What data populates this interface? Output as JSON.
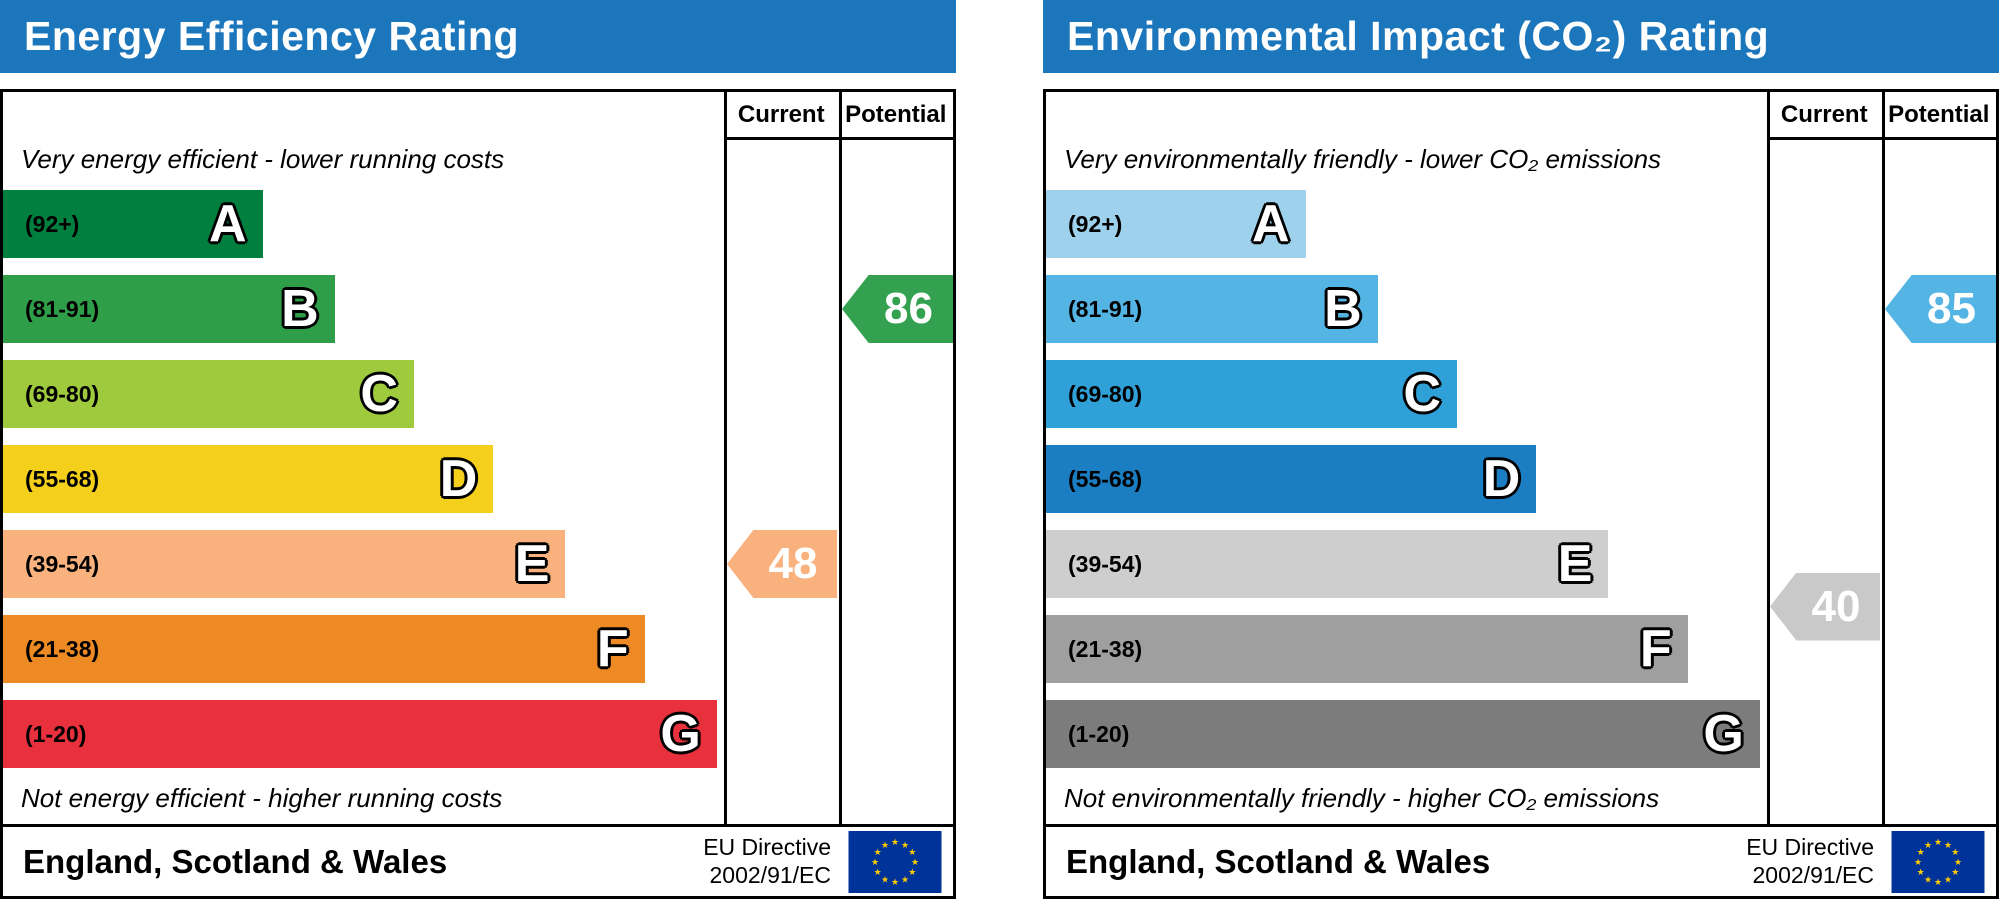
{
  "theme": {
    "header_color": "#1b76bc",
    "flag_blue": "#003399",
    "flag_star": "#ffcc00"
  },
  "panels": [
    {
      "title": "Energy Efficiency Rating",
      "columns": {
        "current": "Current",
        "potential": "Potential"
      },
      "top_caption": "Very energy efficient - lower running costs",
      "bottom_caption": "Not energy efficient - higher running costs",
      "bands": [
        {
          "range": "(92+)",
          "letter": "A",
          "color": "#007f3f",
          "width_pct": 36
        },
        {
          "range": "(81-91)",
          "letter": "B",
          "color": "#2f9e48",
          "width_pct": 46
        },
        {
          "range": "(69-80)",
          "letter": "C",
          "color": "#9fca3d",
          "width_pct": 57
        },
        {
          "range": "(55-68)",
          "letter": "D",
          "color": "#f4d01c",
          "width_pct": 68
        },
        {
          "range": "(39-54)",
          "letter": "E",
          "color": "#f9b27e",
          "width_pct": 78
        },
        {
          "range": "(21-38)",
          "letter": "F",
          "color": "#ee8a24",
          "width_pct": 89
        },
        {
          "range": "(1-20)",
          "letter": "G",
          "color": "#e9313d",
          "width_pct": 99
        }
      ],
      "current": {
        "value": "48",
        "color": "#f9b27e",
        "row": 4
      },
      "potential": {
        "value": "86",
        "color": "#33a150",
        "row": 1
      },
      "footer": {
        "region": "England, Scotland & Wales",
        "directive_line1": "EU Directive",
        "directive_line2": "2002/91/EC"
      }
    },
    {
      "title": "Environmental Impact (CO₂) Rating",
      "columns": {
        "current": "Current",
        "potential": "Potential"
      },
      "top_caption": "Very environmentally friendly - lower CO₂ emissions",
      "bottom_caption": "Not environmentally friendly - higher CO₂ emissions",
      "bands": [
        {
          "range": "(92+)",
          "letter": "A",
          "color": "#9ed1ec",
          "width_pct": 36
        },
        {
          "range": "(81-91)",
          "letter": "B",
          "color": "#54b5e4",
          "width_pct": 46
        },
        {
          "range": "(69-80)",
          "letter": "C",
          "color": "#2fa0d8",
          "width_pct": 57
        },
        {
          "range": "(55-68)",
          "letter": "D",
          "color": "#1b7ec2",
          "width_pct": 68
        },
        {
          "range": "(39-54)",
          "letter": "E",
          "color": "#cecece",
          "width_pct": 78
        },
        {
          "range": "(21-38)",
          "letter": "F",
          "color": "#9f9f9f",
          "width_pct": 89
        },
        {
          "range": "(1-20)",
          "letter": "G",
          "color": "#7c7c7c",
          "width_pct": 99
        }
      ],
      "current": {
        "value": "40",
        "color": "#c9c9c9",
        "row": 4.5
      },
      "potential": {
        "value": "85",
        "color": "#54b5e4",
        "row": 1
      },
      "footer": {
        "region": "England, Scotland & Wales",
        "directive_line1": "EU Directive",
        "directive_line2": "2002/91/EC"
      }
    }
  ],
  "chart_data": [
    {
      "type": "bar",
      "title": "Energy Efficiency Rating",
      "categories": [
        "A (92+)",
        "B (81-91)",
        "C (69-80)",
        "D (55-68)",
        "E (39-54)",
        "F (21-38)",
        "G (1-20)"
      ],
      "bar_lengths_pct": [
        36,
        46,
        57,
        68,
        78,
        89,
        99
      ],
      "current": {
        "value": 48,
        "band": "E"
      },
      "potential": {
        "value": 86,
        "band": "B"
      },
      "top_caption": "Very energy efficient - lower running costs",
      "bottom_caption": "Not energy efficient - higher running costs",
      "region": "England, Scotland & Wales",
      "directive": "EU Directive 2002/91/EC"
    },
    {
      "type": "bar",
      "title": "Environmental Impact (CO₂) Rating",
      "categories": [
        "A (92+)",
        "B (81-91)",
        "C (69-80)",
        "D (55-68)",
        "E (39-54)",
        "F (21-38)",
        "G (1-20)"
      ],
      "bar_lengths_pct": [
        36,
        46,
        57,
        68,
        78,
        89,
        99
      ],
      "current": {
        "value": 40,
        "band": "E"
      },
      "potential": {
        "value": 85,
        "band": "B"
      },
      "top_caption": "Very environmentally friendly - lower CO₂ emissions",
      "bottom_caption": "Not environmentally friendly - higher CO₂ emissions",
      "region": "England, Scotland & Wales",
      "directive": "EU Directive 2002/91/EC"
    }
  ]
}
